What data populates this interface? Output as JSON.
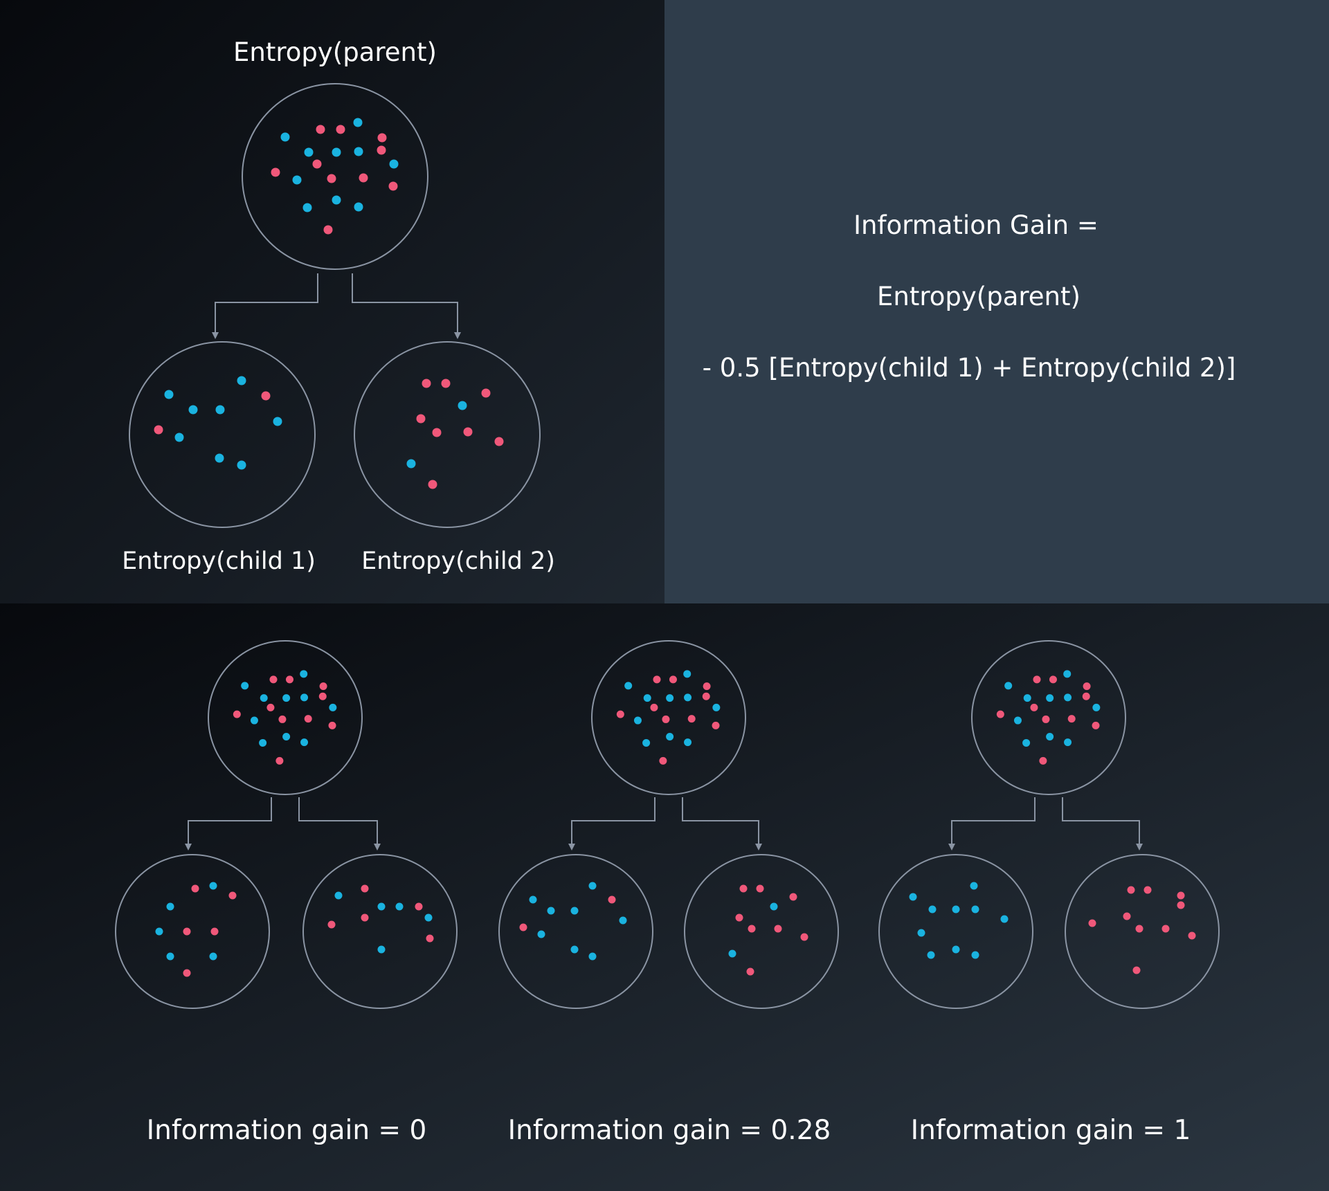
{
  "colors": {
    "pink": "#f0587a",
    "blue": "#1ab3e0",
    "stroke": "#8a94a3",
    "text": "#ffffff",
    "right_panel": "#2f3d4b"
  },
  "top": {
    "parent_label": "Entropy(parent)",
    "child1_label": "Entropy(child 1)",
    "child2_label": "Entropy(child 2)"
  },
  "formula": {
    "line1": "Information Gain =",
    "line2": "Entropy(parent)",
    "line3": "- 0.5 [Entropy(child 1) + Entropy(child 2)]"
  },
  "bottom": {
    "labels": [
      "Information gain = 0",
      "Information gain = 0.28",
      "Information gain = 1"
    ]
  }
}
